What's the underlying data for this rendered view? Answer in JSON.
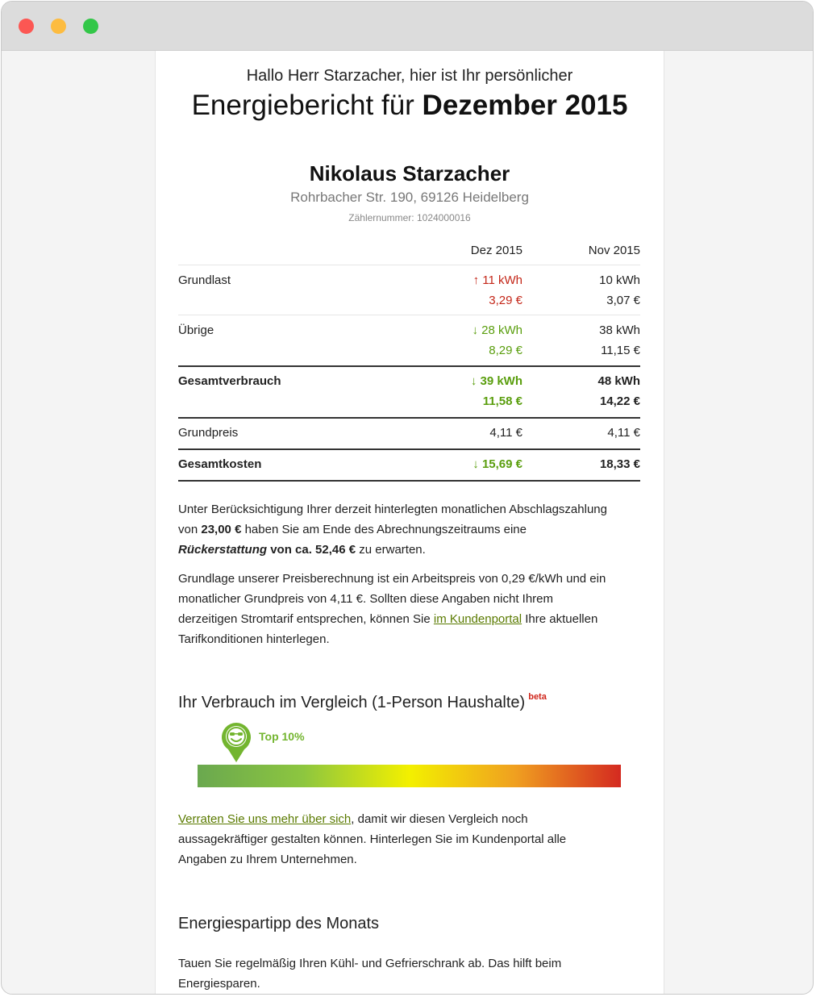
{
  "greeting": "Hallo Herr Starzacher, hier ist Ihr persönlicher",
  "report_title_prefix": "Energiebericht für ",
  "report_title_period": "Dezember 2015",
  "customer": {
    "name": "Nikolaus Starzacher",
    "address": "Rohrbacher Str. 190, 69126 Heidelberg",
    "meter": "Zählernummer: 1024000016"
  },
  "table": {
    "col1": "Dez 2015",
    "col2": "Nov 2015",
    "rows": [
      {
        "label": "Grundlast",
        "c1_kwh": "↑ 11 kWh",
        "c1_eur": "3,29 €",
        "c2_kwh": "10 kWh",
        "c2_eur": "3,07 €"
      },
      {
        "label": "Übrige",
        "c1_kwh": "↓ 28 kWh",
        "c1_eur": "8,29 €",
        "c2_kwh": "38 kWh",
        "c2_eur": "11,15 €"
      },
      {
        "label": "Gesamtverbrauch",
        "c1_kwh": "↓ 39 kWh",
        "c1_eur": "11,58 €",
        "c2_kwh": "48 kWh",
        "c2_eur": "14,22 €"
      },
      {
        "label": "Grundpreis",
        "c1": "4,11 €",
        "c2": "4,11 €"
      },
      {
        "label": "Gesamtkosten",
        "c1": "↓ 15,69 €",
        "c2": "18,33 €"
      }
    ]
  },
  "refund": {
    "line1": "Unter Berücksichtigung Ihrer derzeit hinterlegten monatlichen Abschlagszahlung",
    "line2_pre": "von ",
    "line2_amount": "23,00 €",
    "line2_post": " haben Sie am Ende des Abrechnungszeitraums eine",
    "line3_bold_italic": "Rückerstattung",
    "line3_bold": " von ca. 52,46 €",
    "line3_post": " zu erwarten."
  },
  "pricing": {
    "line1": "Grundlage unserer Preisberechnung ist ein Arbeitspreis von 0,29 €/kWh und ein",
    "line2": "monatlicher Grundpreis von 4,11 €. Sollten diese Angaben nicht Ihrem",
    "line3_pre": "derzeitigen Stromtarif entsprechen, können Sie ",
    "line3_link": "im Kundenportal",
    "line3_post": " Ihre aktuellen",
    "line4": "Tarifkonditionen hinterlegen."
  },
  "comparison": {
    "heading": "Ihr Verbrauch im Vergleich (1-Person Haushalte)",
    "beta": "beta",
    "rank_label": "Top 10%",
    "rank_position": 0.09,
    "gradient_colors": [
      "#6aa84f",
      "#8dc63f",
      "#f3f000",
      "#f0a020",
      "#d42a20"
    ],
    "marker_color": "#73b52f",
    "text_link": "Verraten Sie uns mehr über sich",
    "text_line1_post": ", damit wir diesen Vergleich noch",
    "text_line2": "aussagekräftiger gestalten können. Hinterlegen Sie im Kundenportal alle",
    "text_line3": "Angaben zu Ihrem Unternehmen."
  },
  "tip": {
    "heading": "Energiespartipp des Monats",
    "line1": "Tauen Sie regelmäßig Ihren Kühl- und Gefrierschrank ab. Das hilft beim",
    "line2": "Energiesparen."
  }
}
